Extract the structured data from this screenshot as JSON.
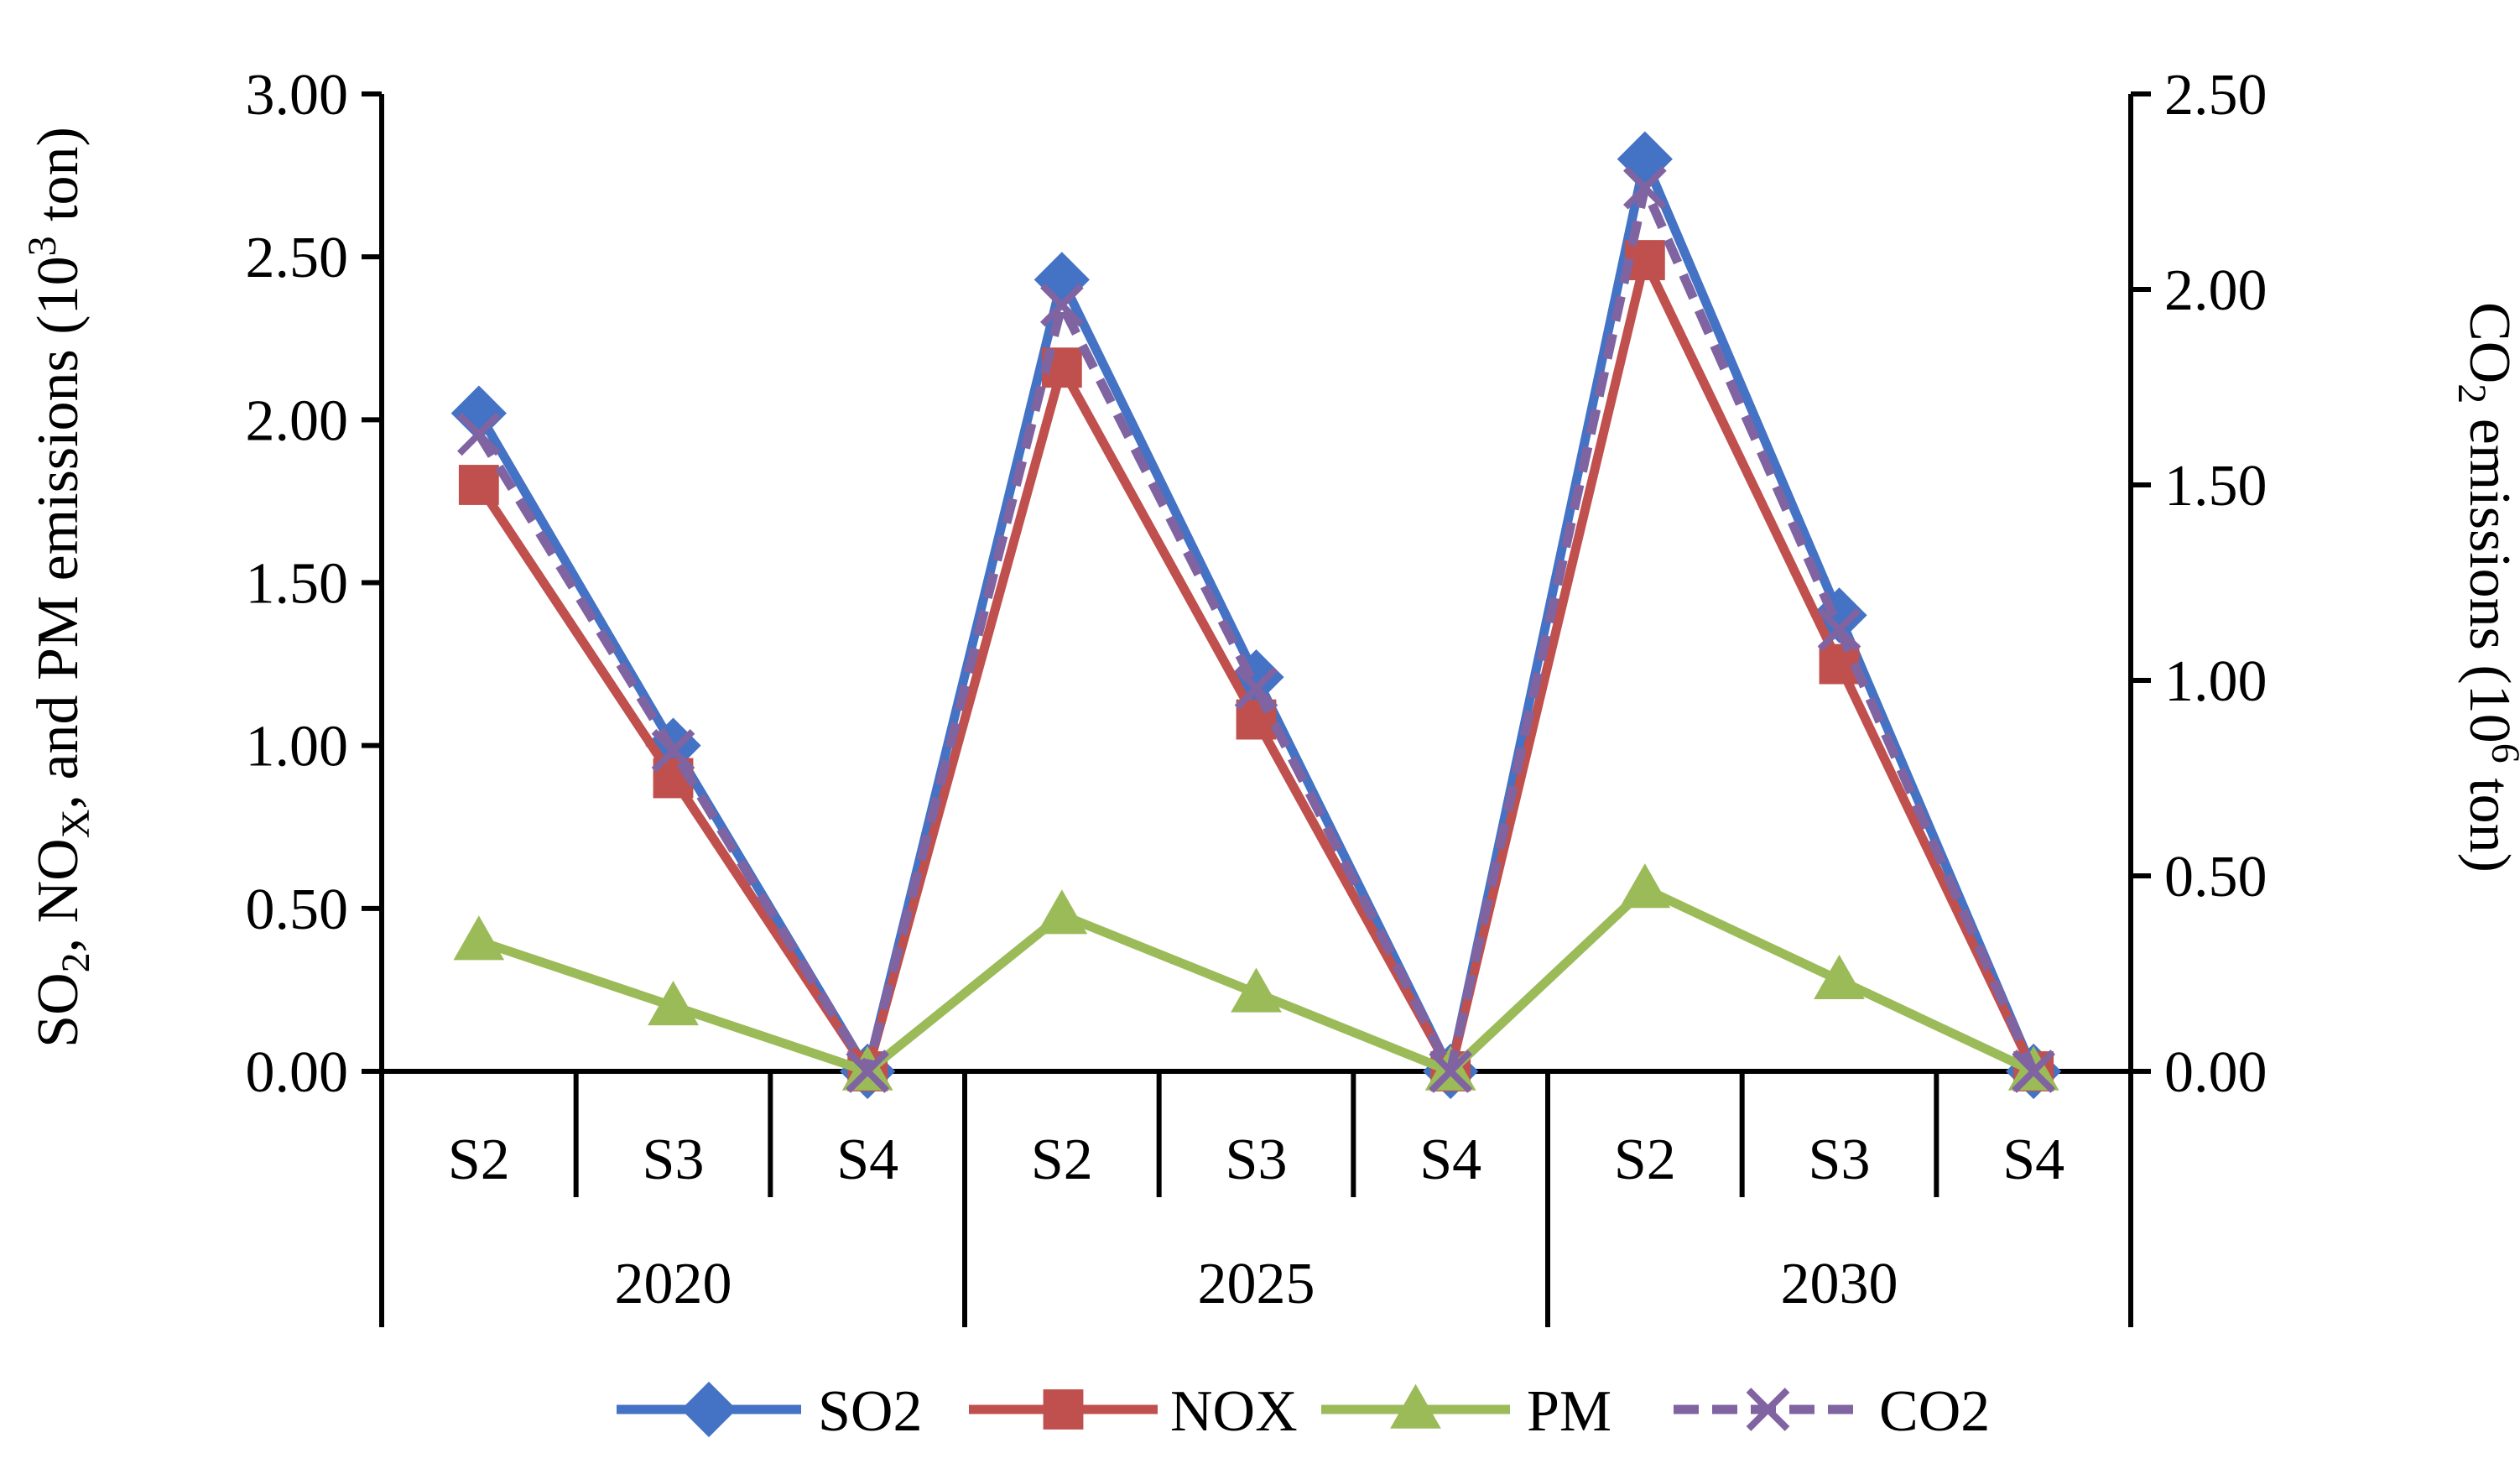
{
  "chart_data": {
    "type": "line",
    "categories": [
      "S2",
      "S3",
      "S4",
      "S2",
      "S3",
      "S4",
      "S2",
      "S3",
      "S4"
    ],
    "groups": [
      "2020",
      "2025",
      "2030"
    ],
    "y_left": {
      "label_parts": [
        "SO",
        "2",
        ", NO",
        "X",
        ", and PM emissions (10",
        "3",
        " ton)"
      ],
      "ylim": [
        0,
        3.0
      ],
      "ticks": [
        "0.00",
        "0.50",
        "1.00",
        "1.50",
        "2.00",
        "2.50",
        "3.00"
      ]
    },
    "y_right": {
      "label_parts": [
        "CO",
        "2",
        " emissions (10",
        "6",
        " ton)"
      ],
      "ylim": [
        0,
        2.5
      ],
      "ticks": [
        "0.00",
        "0.50",
        "1.00",
        "1.50",
        "2.00",
        "2.50"
      ]
    },
    "series": [
      {
        "name": "SO2",
        "axis": "left",
        "color": "#4472C4",
        "marker": "diamond",
        "dash": "solid",
        "values": [
          2.02,
          1.0,
          0.0,
          2.43,
          1.21,
          0.0,
          2.8,
          1.4,
          0.0
        ]
      },
      {
        "name": "NOX",
        "axis": "left",
        "color": "#C0504D",
        "marker": "square",
        "dash": "solid",
        "values": [
          1.8,
          0.9,
          0.0,
          2.16,
          1.08,
          0.0,
          2.49,
          1.25,
          0.0
        ]
      },
      {
        "name": "PM",
        "axis": "left",
        "color": "#9BBB59",
        "marker": "triangle",
        "dash": "solid",
        "values": [
          0.4,
          0.2,
          0.0,
          0.48,
          0.24,
          0.0,
          0.56,
          0.28,
          0.0
        ]
      },
      {
        "name": "CO2",
        "axis": "right",
        "color": "#8064A2",
        "marker": "x",
        "dash": "dashed",
        "values": [
          1.63,
          0.82,
          0.0,
          1.96,
          0.98,
          0.0,
          2.26,
          1.13,
          0.0
        ]
      }
    ],
    "legend_position": "bottom"
  }
}
